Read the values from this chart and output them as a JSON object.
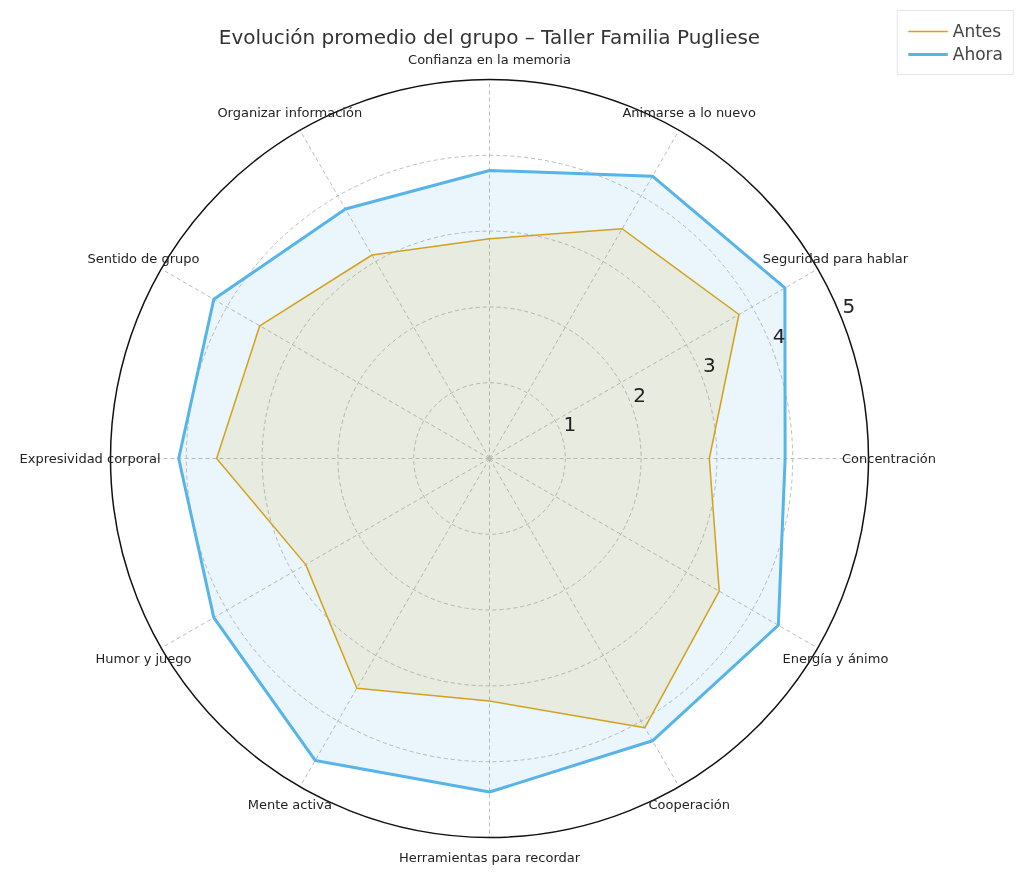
{
  "chart_data": {
    "type": "radar",
    "title": "Evolución promedio del grupo – Taller Familia Pugliese",
    "categories": [
      "Confianza en la memoria",
      "Animarse a lo nuevo",
      "Seguridad para hablar",
      "Concentración",
      "Energía y ánimo",
      "Cooperación",
      "Herramientas para recordar",
      "Mente activa",
      "Humor y juego",
      "Expresividad corporal",
      "Sentido de grupo",
      "Organizar información"
    ],
    "series": [
      {
        "name": "Antes",
        "color": "#e69f00",
        "values": [
          2.9,
          3.5,
          3.8,
          2.9,
          3.5,
          4.1,
          3.2,
          3.5,
          2.8,
          3.6,
          3.5,
          3.1
        ]
      },
      {
        "name": "Ahora",
        "color": "#56b4e9",
        "values": [
          3.8,
          4.3,
          4.5,
          3.9,
          4.4,
          4.3,
          4.4,
          4.6,
          4.2,
          4.1,
          4.2,
          3.8
        ]
      }
    ],
    "ylim": [
      0,
      5
    ],
    "yticks": [
      1,
      2,
      3,
      4,
      5
    ],
    "grid": true,
    "legend": "top right"
  }
}
